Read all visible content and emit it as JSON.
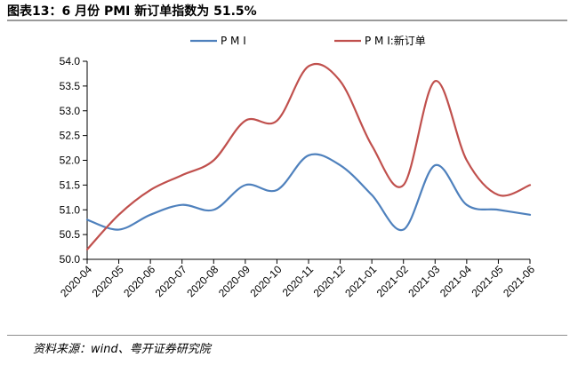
{
  "header": {
    "title": "图表13：6 月份 PMI 新订单指数为 51.5%"
  },
  "footer": {
    "source": "资料来源：wind、粤开证券研究院"
  },
  "chart_data": {
    "type": "line",
    "title": "图表13：6 月份 PMI 新订单指数为 51.5%",
    "x": [
      "2020-04",
      "2020-05",
      "2020-06",
      "2020-07",
      "2020-08",
      "2020-09",
      "2020-10",
      "2020-11",
      "2020-12",
      "2021-01",
      "2021-02",
      "2021-03",
      "2021-04",
      "2021-05",
      "2021-06"
    ],
    "series": [
      {
        "name": "P M I",
        "color": "#4f81bd",
        "values": [
          50.8,
          50.6,
          50.9,
          51.1,
          51.0,
          51.5,
          51.4,
          52.1,
          51.9,
          51.3,
          50.6,
          51.9,
          51.1,
          51.0,
          50.9
        ]
      },
      {
        "name": "P M I:新订单",
        "color": "#c0504d",
        "values": [
          50.2,
          50.9,
          51.4,
          51.7,
          52.0,
          52.8,
          52.8,
          53.9,
          53.6,
          52.3,
          51.5,
          53.6,
          52.0,
          51.3,
          51.5
        ]
      }
    ],
    "y_ticks": [
      "50.0",
      "50.5",
      "51.0",
      "51.5",
      "52.0",
      "52.5",
      "53.0",
      "53.5",
      "54.0"
    ],
    "ylim": [
      50.0,
      54.0
    ],
    "legend": "top-center",
    "grid": false
  }
}
